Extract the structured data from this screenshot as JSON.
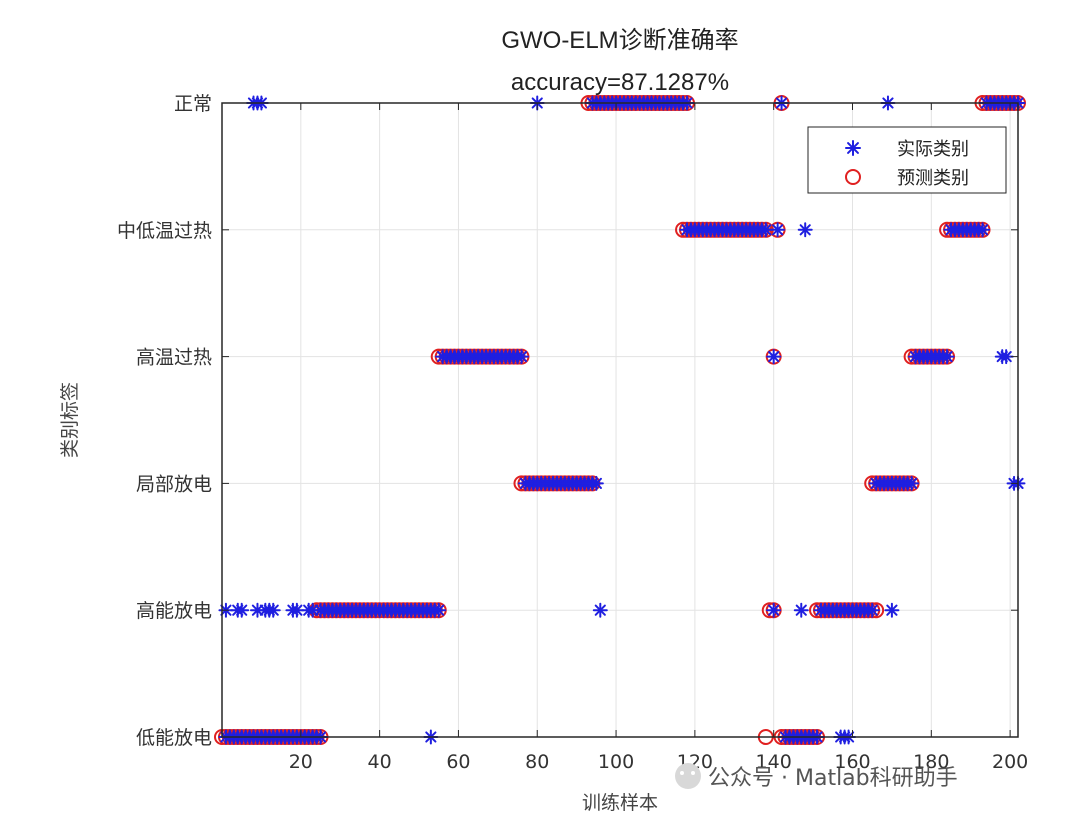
{
  "chart_data": {
    "type": "scatter",
    "title": "GWO-ELM诊断准确率",
    "subtitle": "accuracy=87.1287%",
    "xlabel": "训练样本",
    "ylabel": "类别标签",
    "xlim": [
      0,
      202
    ],
    "xticks": [
      20,
      40,
      60,
      80,
      100,
      120,
      140,
      160,
      180,
      200
    ],
    "categories": [
      "低能放电",
      "高能放电",
      "局部放电",
      "高温过热",
      "中低温过热",
      "正常"
    ],
    "grid": true,
    "legend": {
      "position": "top-right",
      "entries": [
        "实际类别",
        "预测类别"
      ]
    },
    "series": [
      {
        "name": "实际类别",
        "marker": "asterisk",
        "color": "#1f1fe0",
        "points": [
          {
            "class": "正常",
            "x": [
              8,
              9,
              10,
              80,
              142,
              169
            ]
          },
          {
            "class": "正常",
            "range": [
              94,
              118
            ]
          },
          {
            "class": "正常",
            "range": [
              194,
              202
            ]
          },
          {
            "class": "中低温过热",
            "x": [
              141,
              148
            ]
          },
          {
            "class": "中低温过热",
            "range": [
              118,
              138
            ]
          },
          {
            "class": "中低温过热",
            "range": [
              185,
              193
            ]
          },
          {
            "class": "高温过热",
            "x": [
              140,
              198,
              199
            ]
          },
          {
            "class": "高温过热",
            "range": [
              56,
              76
            ]
          },
          {
            "class": "高温过热",
            "range": [
              176,
              184
            ]
          },
          {
            "class": "局部放电",
            "x": [
              95,
              201,
              202
            ]
          },
          {
            "class": "局部放电",
            "range": [
              77,
              94
            ]
          },
          {
            "class": "局部放电",
            "range": [
              166,
              175
            ]
          },
          {
            "class": "高能放电",
            "x": [
              1,
              4,
              5,
              9,
              11,
              12,
              13,
              18,
              19,
              22,
              23,
              96,
              140,
              147,
              170
            ]
          },
          {
            "class": "高能放电",
            "range": [
              25,
              55
            ]
          },
          {
            "class": "高能放电",
            "range": [
              152,
              165
            ]
          },
          {
            "class": "低能放电",
            "x": [
              53,
              157,
              158,
              159
            ]
          },
          {
            "class": "低能放电",
            "range": [
              1,
              25
            ]
          },
          {
            "class": "低能放电",
            "range": [
              143,
              151
            ]
          }
        ]
      },
      {
        "name": "预测类别",
        "marker": "circle",
        "color": "#e02020",
        "points": [
          {
            "class": "正常",
            "x": [
              142
            ]
          },
          {
            "class": "正常",
            "range": [
              93,
              118
            ]
          },
          {
            "class": "正常",
            "range": [
              193,
              202
            ]
          },
          {
            "class": "中低温过热",
            "x": [
              141
            ]
          },
          {
            "class": "中低温过热",
            "range": [
              117,
              138
            ]
          },
          {
            "class": "中低温过热",
            "range": [
              184,
              193
            ]
          },
          {
            "class": "高温过热",
            "x": [
              140
            ]
          },
          {
            "class": "高温过热",
            "range": [
              55,
              76
            ]
          },
          {
            "class": "高温过热",
            "range": [
              175,
              184
            ]
          },
          {
            "class": "局部放电",
            "range": [
              76,
              94
            ]
          },
          {
            "class": "局部放电",
            "range": [
              165,
              175
            ]
          },
          {
            "class": "高能放电",
            "x": [
              139,
              140
            ]
          },
          {
            "class": "高能放电",
            "range": [
              24,
              55
            ]
          },
          {
            "class": "高能放电",
            "range": [
              151,
              166
            ]
          },
          {
            "class": "低能放电",
            "x": [
              138
            ]
          },
          {
            "class": "低能放电",
            "range": [
              0,
              25
            ]
          },
          {
            "class": "低能放电",
            "range": [
              142,
              151
            ]
          }
        ]
      }
    ]
  },
  "watermark": {
    "text": "公众号 · Matlab科研助手",
    "icon": "wechat-icon"
  }
}
